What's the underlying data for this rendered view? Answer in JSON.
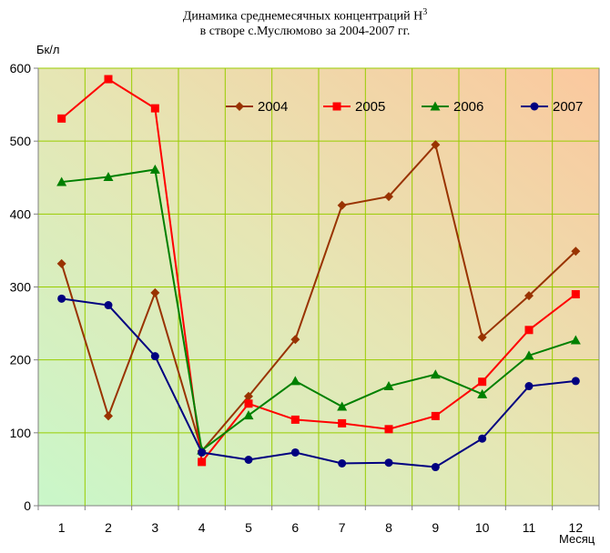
{
  "title": {
    "line1": "Динамика среднемесячных концентраций Н",
    "line1_sup": "3",
    "line2": "в створе с.Муслюмово за 2004-2007 гг."
  },
  "chart_data": {
    "type": "line",
    "ylabel": "Бк/л",
    "xlabel": "Месяц",
    "ylim": [
      0,
      600
    ],
    "yticks": [
      0,
      100,
      200,
      300,
      400,
      500,
      600
    ],
    "categories": [
      "1",
      "2",
      "3",
      "4",
      "5",
      "6",
      "7",
      "8",
      "9",
      "10",
      "11",
      "12"
    ],
    "grid": true,
    "legend_position": "top-right",
    "series": [
      {
        "name": "2004",
        "color": "#993300",
        "marker": "diamond",
        "values": [
          332,
          123,
          292,
          75,
          150,
          228,
          412,
          424,
          495,
          231,
          288,
          349
        ]
      },
      {
        "name": "2005",
        "color": "#ff0000",
        "marker": "square",
        "values": [
          531,
          585,
          545,
          60,
          140,
          118,
          113,
          105,
          123,
          170,
          241,
          290
        ]
      },
      {
        "name": "2006",
        "color": "#008000",
        "marker": "triangle",
        "values": [
          444,
          451,
          461,
          76,
          124,
          171,
          136,
          164,
          180,
          153,
          206,
          227
        ]
      },
      {
        "name": "2007",
        "color": "#000080",
        "marker": "circle",
        "values": [
          284,
          275,
          205,
          73,
          63,
          73,
          58,
          59,
          53,
          92,
          164,
          171
        ]
      }
    ]
  }
}
